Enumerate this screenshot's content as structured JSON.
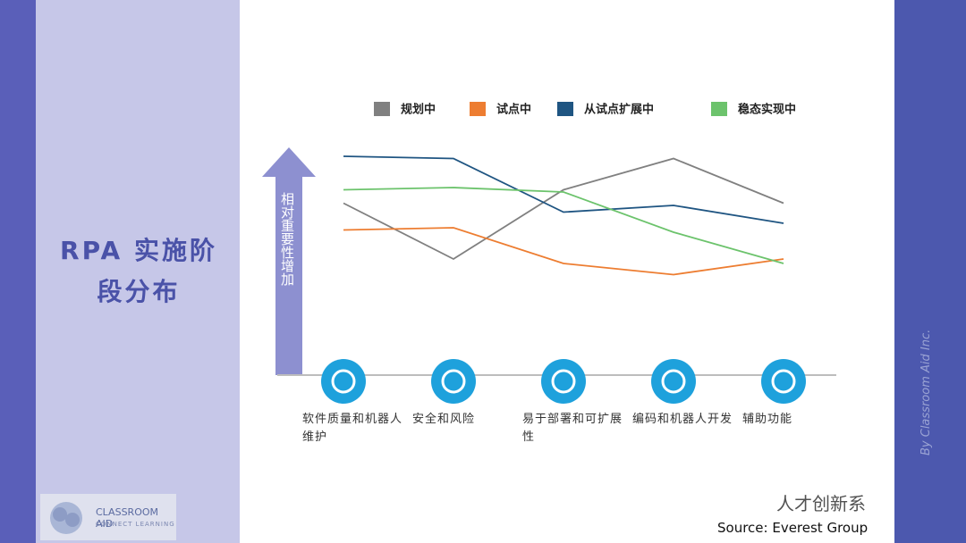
{
  "chart_data": {
    "type": "line",
    "title": "RPA 实施阶段分布",
    "y_label": "相对重要性增加",
    "categories": [
      "软件质量和机器人维护",
      "安全和风险",
      "易于部署和可扩展性",
      "编码和机器人开发",
      "辅助功能"
    ],
    "series": [
      {
        "name": "规划中",
        "color": "#808080",
        "values": [
          77,
          52,
          83,
          97,
          77
        ]
      },
      {
        "name": "试点中",
        "color": "#ed7d31",
        "values": [
          65,
          66,
          50,
          45,
          52
        ]
      },
      {
        "name": "从试点扩展中",
        "color": "#1f5582",
        "values": [
          98,
          97,
          73,
          76,
          68
        ]
      },
      {
        "name": "稳态实现中",
        "color": "#6cc36c",
        "values": [
          83,
          84,
          82,
          64,
          50
        ]
      }
    ],
    "ylim": [
      0,
      100
    ],
    "source": "Source: Everest Group"
  },
  "page": {
    "logo_name": "CLASSROOM AID",
    "logo_tagline": "CONNECT LEARNING",
    "side_text": "By Classroom Aid Inc.",
    "watermark": "人才创新系"
  }
}
